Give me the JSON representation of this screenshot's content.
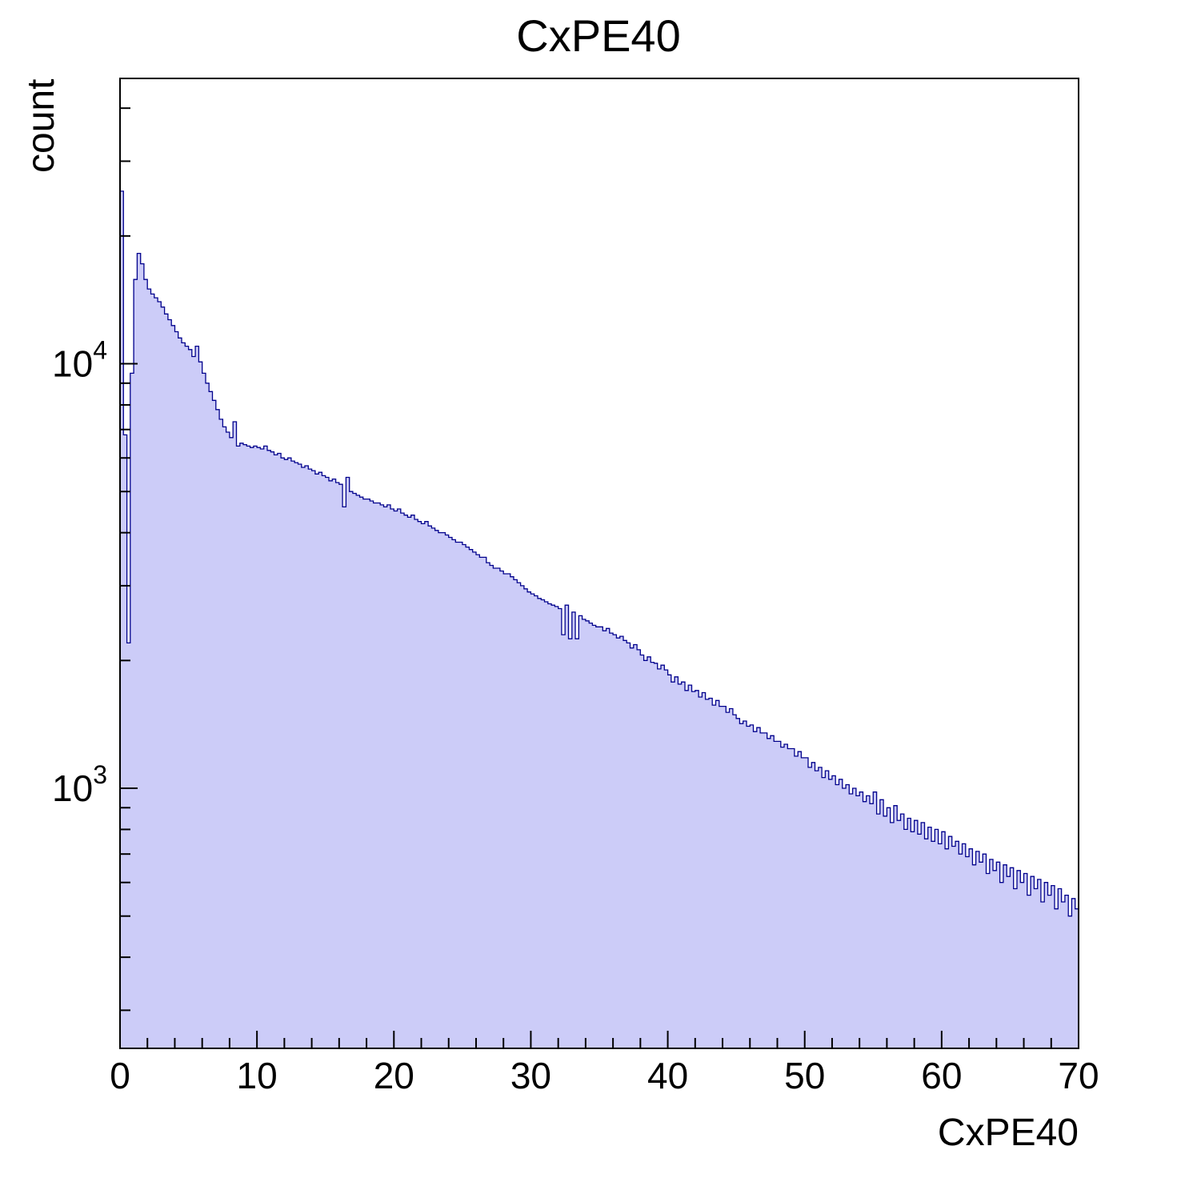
{
  "colors": {
    "fill": "#ccccf8",
    "line": "#00008c",
    "axis": "#000000",
    "background": "#ffffff"
  },
  "chart_data": {
    "type": "bar",
    "subtype": "histogram",
    "title": "CxPE40",
    "xlabel": "CxPE40",
    "ylabel": "count",
    "x_range": [
      0,
      70
    ],
    "y_scale": "log",
    "y_range": [
      244,
      47000
    ],
    "x_ticks": [
      0,
      10,
      20,
      30,
      40,
      50,
      60,
      70
    ],
    "x_minor_step": 2,
    "y_major_ticks": [
      1000,
      10000
    ],
    "legend": "none",
    "grid": false,
    "bin_start": 0,
    "bin_width": 0.25,
    "counts": [
      25500,
      6800,
      2200,
      9500,
      15800,
      18200,
      17200,
      15800,
      15000,
      14600,
      14300,
      14000,
      13600,
      13100,
      12700,
      12300,
      11900,
      11500,
      11200,
      11000,
      10800,
      10400,
      11000,
      10100,
      9500,
      9000,
      8600,
      8200,
      7800,
      7400,
      7100,
      6900,
      6700,
      7300,
      6400,
      6500,
      6450,
      6400,
      6350,
      6400,
      6350,
      6300,
      6400,
      6250,
      6200,
      6100,
      6150,
      6000,
      5950,
      6000,
      5900,
      5850,
      5800,
      5700,
      5750,
      5650,
      5600,
      5500,
      5550,
      5450,
      5400,
      5300,
      5350,
      5250,
      5200,
      4600,
      5400,
      5000,
      4950,
      4900,
      4850,
      4800,
      4800,
      4750,
      4700,
      4700,
      4650,
      4600,
      4650,
      4550,
      4500,
      4550,
      4450,
      4400,
      4350,
      4400,
      4300,
      4250,
      4200,
      4250,
      4150,
      4100,
      4050,
      4000,
      4000,
      3950,
      3900,
      3850,
      3800,
      3800,
      3750,
      3700,
      3650,
      3600,
      3550,
      3500,
      3500,
      3400,
      3350,
      3300,
      3300,
      3250,
      3200,
      3200,
      3150,
      3100,
      3050,
      3000,
      2950,
      2900,
      2870,
      2840,
      2800,
      2780,
      2750,
      2720,
      2700,
      2680,
      2650,
      2300,
      2700,
      2250,
      2600,
      2250,
      2550,
      2500,
      2480,
      2450,
      2420,
      2400,
      2400,
      2350,
      2380,
      2320,
      2300,
      2260,
      2280,
      2230,
      2200,
      2140,
      2180,
      2120,
      2060,
      2000,
      2040,
      1980,
      1970,
      1910,
      1950,
      1900,
      1850,
      1780,
      1830,
      1760,
      1780,
      1700,
      1750,
      1690,
      1700,
      1640,
      1680,
      1620,
      1630,
      1570,
      1610,
      1560,
      1560,
      1510,
      1540,
      1490,
      1460,
      1420,
      1440,
      1400,
      1410,
      1360,
      1390,
      1350,
      1350,
      1310,
      1330,
      1290,
      1290,
      1250,
      1270,
      1240,
      1240,
      1190,
      1220,
      1180,
      1180,
      1120,
      1150,
      1100,
      1120,
      1060,
      1100,
      1050,
      1070,
      1020,
      1050,
      1000,
      1020,
      970,
      1000,
      960,
      980,
      930,
      960,
      920,
      980,
      870,
      940,
      860,
      900,
      830,
      910,
      840,
      870,
      800,
      850,
      790,
      840,
      780,
      830,
      760,
      810,
      750,
      800,
      740,
      790,
      720,
      770,
      730,
      750,
      700,
      740,
      690,
      720,
      660,
      710,
      670,
      700,
      630,
      680,
      640,
      670,
      600,
      660,
      620,
      650,
      580,
      640,
      600,
      630,
      560,
      620,
      580,
      610,
      540,
      600,
      560,
      590,
      520,
      580,
      540,
      560,
      500,
      550,
      520
    ]
  }
}
